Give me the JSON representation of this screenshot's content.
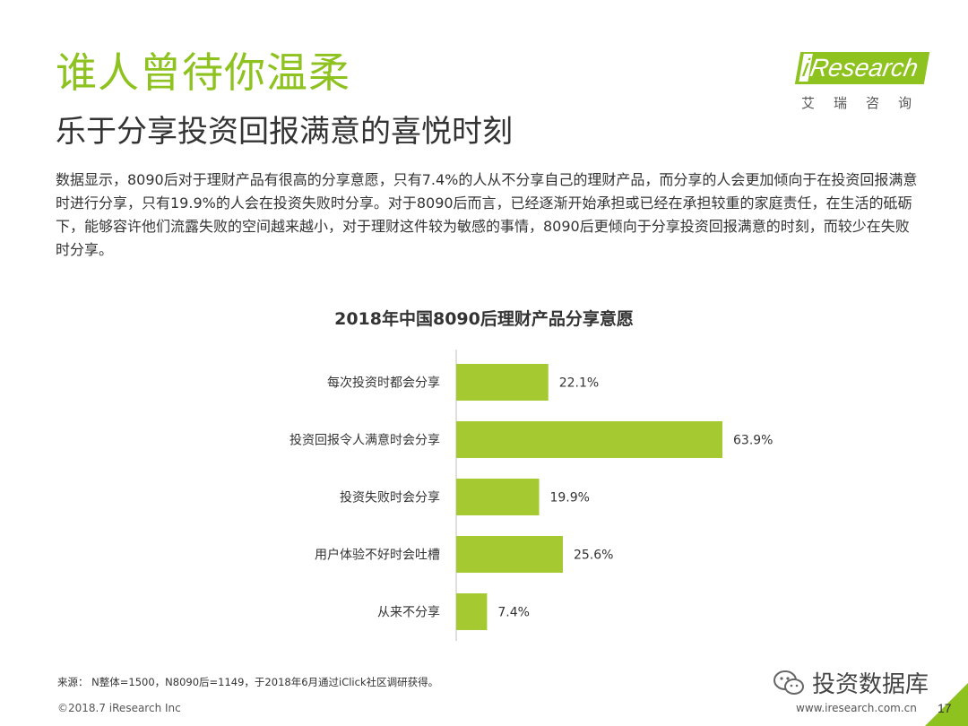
{
  "header": {
    "title": "谁人曾待你温柔",
    "subtitle": "乐于分享投资回报满意的喜悦时刻"
  },
  "logo": {
    "word_i": "i",
    "word_rest": "Research",
    "chinese": "艾瑞咨询",
    "brand_color": "#8dc21f"
  },
  "paragraph": "数据显示，8090后对于理财产品有很高的分享意愿，只有7.4%的人从不分享自己的理财产品，而分享的人会更加倾向于在投资回报满意时进行分享，只有19.9%的人会在投资失败时分享。对于8090后而言，已经逐渐开始承担或已经在承担较重的家庭责任，在生活的砥砺下，能够容许他们流露失败的空间越来越小，对于理财这件较为敏感的事情，8090后更倾向于分享投资回报满意的时刻，而较少在失败时分享。",
  "chart_data": {
    "type": "bar",
    "orientation": "horizontal",
    "title": "2018年中国8090后理财产品分享意愿",
    "categories": [
      "每次投资时都会分享",
      "投资回报令人满意时会分享",
      "投资失败时会分享",
      "用户体验不好时会吐槽",
      "从来不分享"
    ],
    "values": [
      22.1,
      63.9,
      19.9,
      25.6,
      7.4
    ],
    "value_labels": [
      "22.1%",
      "63.9%",
      "19.9%",
      "25.6%",
      "7.4%"
    ],
    "unit": "%",
    "xlim": [
      0,
      100
    ],
    "grid": false,
    "bar_color": "#a5c931"
  },
  "footer": {
    "source": "来源： N整体=1500，N8090后=1149，于2018年6月通过iClick社区调研获得。",
    "copyright": "©2018.7 iResearch Inc",
    "website": "www.iresearch.com.cn",
    "page_number": "17",
    "watermark": "投资数据库",
    "watermark_icon": "wechat-icon"
  }
}
